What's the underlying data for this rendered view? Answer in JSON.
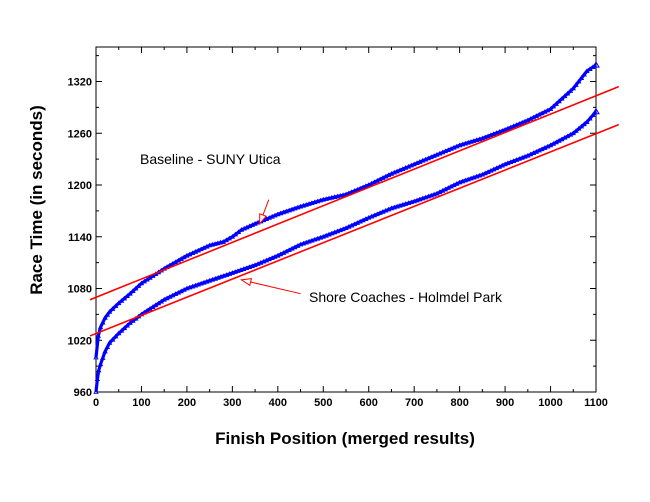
{
  "chart_data": {
    "type": "scatter",
    "title": "",
    "xlabel": "Finish Position (merged results)",
    "ylabel": "Race Time (in seconds)",
    "xlim": [
      0,
      1100
    ],
    "ylim": [
      960,
      1360
    ],
    "xticks": [
      0,
      100,
      200,
      300,
      400,
      500,
      600,
      700,
      800,
      900,
      1000,
      1100
    ],
    "yticks": [
      960,
      1020,
      1080,
      1140,
      1200,
      1260,
      1320
    ],
    "grid": false,
    "legend": "none",
    "series": [
      {
        "color": "#0000ff",
        "x": [
          0,
          5,
          10,
          20,
          30,
          50,
          75,
          100,
          150,
          200,
          250,
          280,
          300,
          320,
          350,
          400,
          450,
          500,
          550,
          600,
          650,
          700,
          750,
          800,
          850,
          900,
          950,
          1000,
          1050,
          1080,
          1100
        ],
        "y": [
          1000,
          1025,
          1035,
          1046,
          1053,
          1063,
          1074,
          1086,
          1103,
          1118,
          1130,
          1134,
          1140,
          1148,
          1155,
          1166,
          1175,
          1183,
          1189,
          1200,
          1213,
          1224,
          1235,
          1246,
          1254,
          1264,
          1275,
          1288,
          1312,
          1332,
          1339
        ]
      },
      {
        "color": "#0000ff",
        "x": [
          0,
          3,
          6,
          10,
          20,
          30,
          50,
          75,
          100,
          150,
          200,
          250,
          300,
          350,
          400,
          450,
          500,
          550,
          600,
          650,
          700,
          750,
          800,
          850,
          900,
          950,
          1000,
          1050,
          1080,
          1100
        ],
        "y": [
          960,
          975,
          985,
          992,
          1007,
          1017,
          1028,
          1040,
          1050,
          1067,
          1080,
          1089,
          1098,
          1107,
          1118,
          1131,
          1140,
          1150,
          1162,
          1173,
          1181,
          1190,
          1203,
          1212,
          1224,
          1234,
          1246,
          1260,
          1273,
          1285
        ]
      }
    ],
    "trendlines": [
      {
        "color": "#ff0000",
        "x": [
          0,
          1150
        ],
        "y": [
          1067,
          1314
        ]
      },
      {
        "color": "#ff0000",
        "x": [
          0,
          1150
        ],
        "y": [
          1025,
          1270
        ]
      }
    ],
    "annotations": [
      {
        "text": "Baseline - SUNY Utica",
        "arrow_from": [
          380,
          1183
        ],
        "arrow_to": [
          360,
          1155
        ]
      },
      {
        "text": "Shore Coaches - Holmdel Park",
        "arrow_from": [
          450,
          1074
        ],
        "arrow_to": [
          320,
          1090
        ]
      }
    ]
  }
}
